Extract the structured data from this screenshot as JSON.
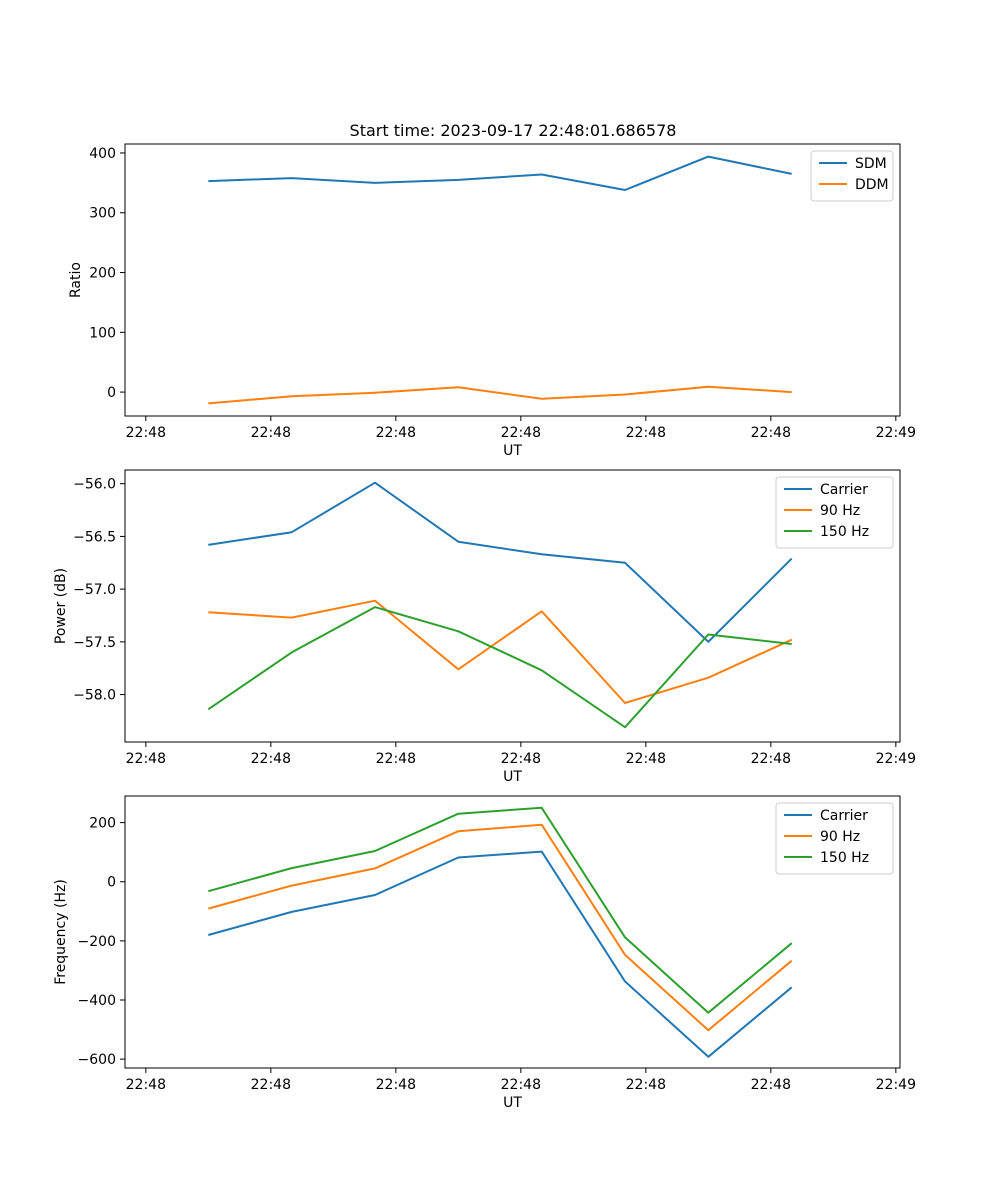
{
  "chart_data": {
    "title": "Start time: 2023-09-17 22:48:01.686578",
    "subplots": [
      {
        "type": "line",
        "name": "ratio",
        "xlabel": "UT",
        "ylabel": "Ratio",
        "xlim": [
          0,
          9.3
        ],
        "ylim": [
          -40,
          415
        ],
        "yticks": [
          0,
          100,
          200,
          300,
          400
        ],
        "ytick_labels": [
          "0",
          "100",
          "200",
          "300",
          "400"
        ],
        "xticks": [
          0.25,
          1.75,
          3.25,
          4.75,
          6.25,
          7.75,
          9.25
        ],
        "xtick_labels": [
          "22:48",
          "22:48",
          "22:48",
          "22:48",
          "22:48",
          "22:48",
          "22:49"
        ],
        "x": [
          1,
          2,
          3,
          4,
          5,
          6,
          7,
          8
        ],
        "legend_position": "top-right",
        "series": [
          {
            "name": "SDM",
            "color": "#1f77b4",
            "values": [
              353,
              358,
              350,
              355,
              364,
              338,
              394,
              365
            ]
          },
          {
            "name": "DDM",
            "color": "#ff7f0e",
            "values": [
              -19,
              -7,
              -1,
              8,
              -11,
              -4,
              9,
              0
            ]
          }
        ]
      },
      {
        "type": "line",
        "name": "power",
        "xlabel": "UT",
        "ylabel": "Power (dB)",
        "xlim": [
          0,
          9.3
        ],
        "ylim": [
          -58.45,
          -55.87
        ],
        "yticks": [
          -58.0,
          -57.5,
          -57.0,
          -56.5,
          -56.0
        ],
        "ytick_labels": [
          "−58.0",
          "−57.5",
          "−57.0",
          "−56.5",
          "−56.0"
        ],
        "xticks": [
          0.25,
          1.75,
          3.25,
          4.75,
          6.25,
          7.75,
          9.25
        ],
        "xtick_labels": [
          "22:48",
          "22:48",
          "22:48",
          "22:48",
          "22:48",
          "22:48",
          "22:49"
        ],
        "x": [
          1,
          2,
          3,
          4,
          5,
          6,
          7,
          8
        ],
        "legend_position": "top-right",
        "series": [
          {
            "name": "Carrier",
            "color": "#1f77b4",
            "values": [
              -56.58,
              -56.46,
              -55.99,
              -56.55,
              -56.67,
              -56.75,
              -57.5,
              -56.71
            ]
          },
          {
            "name": "90 Hz",
            "color": "#ff7f0e",
            "values": [
              -57.22,
              -57.27,
              -57.11,
              -57.76,
              -57.21,
              -58.08,
              -57.84,
              -57.48
            ]
          },
          {
            "name": "150 Hz",
            "color": "#2ca02c",
            "values": [
              -58.14,
              -57.6,
              -57.17,
              -57.4,
              -57.77,
              -58.31,
              -57.43,
              -57.52
            ]
          }
        ]
      },
      {
        "type": "line",
        "name": "frequency",
        "xlabel": "UT",
        "ylabel": "Frequency (Hz)",
        "xlim": [
          0,
          9.3
        ],
        "ylim": [
          -630,
          290
        ],
        "yticks": [
          -600,
          -400,
          -200,
          0,
          200
        ],
        "ytick_labels": [
          "−600",
          "−400",
          "−200",
          "0",
          "200"
        ],
        "xticks": [
          0.25,
          1.75,
          3.25,
          4.75,
          6.25,
          7.75,
          9.25
        ],
        "xtick_labels": [
          "22:48",
          "22:48",
          "22:48",
          "22:48",
          "22:48",
          "22:48",
          "22:49"
        ],
        "x": [
          1,
          2,
          3,
          4,
          5,
          6,
          7,
          8
        ],
        "legend_position": "top-right",
        "series": [
          {
            "name": "Carrier",
            "color": "#1f77b4",
            "values": [
              -180,
              -102,
              -45,
              82,
              102,
              -337,
              -592,
              -357
            ]
          },
          {
            "name": "90 Hz",
            "color": "#ff7f0e",
            "values": [
              -91,
              -13,
              45,
              171,
              193,
              -247,
              -502,
              -267
            ]
          },
          {
            "name": "150 Hz",
            "color": "#2ca02c",
            "values": [
              -32,
              46,
              104,
              230,
              250,
              -188,
              -443,
              -208
            ]
          }
        ]
      }
    ]
  }
}
